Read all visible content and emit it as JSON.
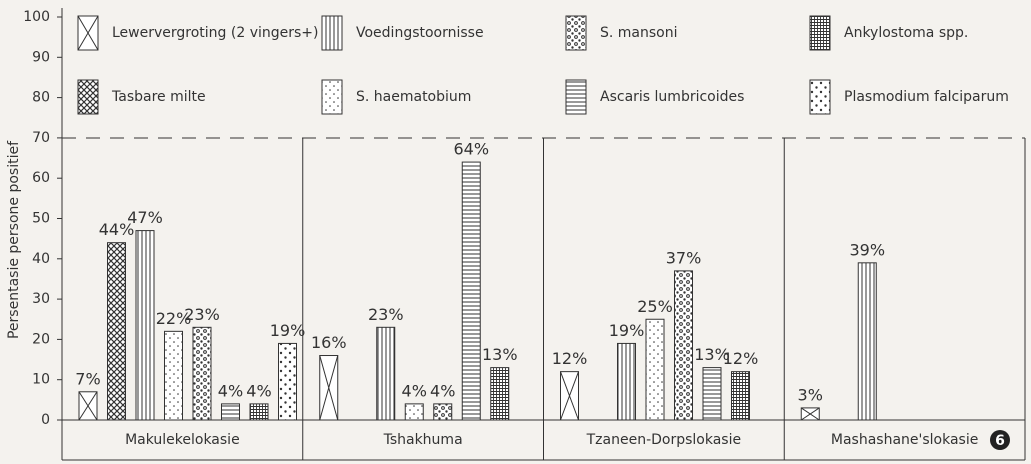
{
  "chart_data": {
    "type": "bar",
    "ylabel": "Persentasie persone positief",
    "badge": "6",
    "categories": [
      "Makulekelokasie",
      "Tshakhuma",
      "Tzaneen-Dorpslokasie",
      "Mashashane'slokasie"
    ],
    "series": [
      {
        "name": "Lewervergroting (2 vingers+)",
        "color": "#333333",
        "values": [
          7,
          16,
          12,
          3
        ],
        "value_labels": [
          "7%",
          "16%",
          "12%",
          "3%"
        ]
      },
      {
        "name": "Tasbare milte",
        "color": "#333333",
        "values": [
          44,
          null,
          null,
          null
        ],
        "value_labels": [
          "44%",
          null,
          null,
          null
        ]
      },
      {
        "name": "Voedingstoornisse",
        "color": "#333333",
        "values": [
          47,
          23,
          19,
          39
        ],
        "value_labels": [
          "47%",
          "23%",
          "19%",
          "39%"
        ]
      },
      {
        "name": "S. haematobium",
        "color": "#333333",
        "values": [
          22,
          4,
          25,
          null
        ],
        "value_labels": [
          "22%",
          "4%",
          "25%",
          null
        ]
      },
      {
        "name": "S. mansoni",
        "color": "#333333",
        "values": [
          23,
          4,
          37,
          null
        ],
        "value_labels": [
          "23%",
          "4%",
          "37%",
          null
        ]
      },
      {
        "name": "Ascaris lumbricoides",
        "color": "#333333",
        "values": [
          4,
          64,
          13,
          null
        ],
        "value_labels": [
          "4%",
          "64%",
          "13%",
          null
        ]
      },
      {
        "name": "Ankylostoma spp.",
        "color": "#333333",
        "values": [
          4,
          13,
          12,
          null
        ],
        "value_labels": [
          "4%",
          "13%",
          "12%",
          null
        ]
      },
      {
        "name": "Plasmodium falciparum",
        "color": "#333333",
        "values": [
          19,
          null,
          null,
          null
        ],
        "value_labels": [
          "19%",
          null,
          null,
          null
        ]
      }
    ],
    "ylim": [
      0,
      100
    ],
    "yticks": [
      0,
      10,
      20,
      30,
      40,
      50,
      60,
      70,
      80,
      90,
      100
    ]
  }
}
